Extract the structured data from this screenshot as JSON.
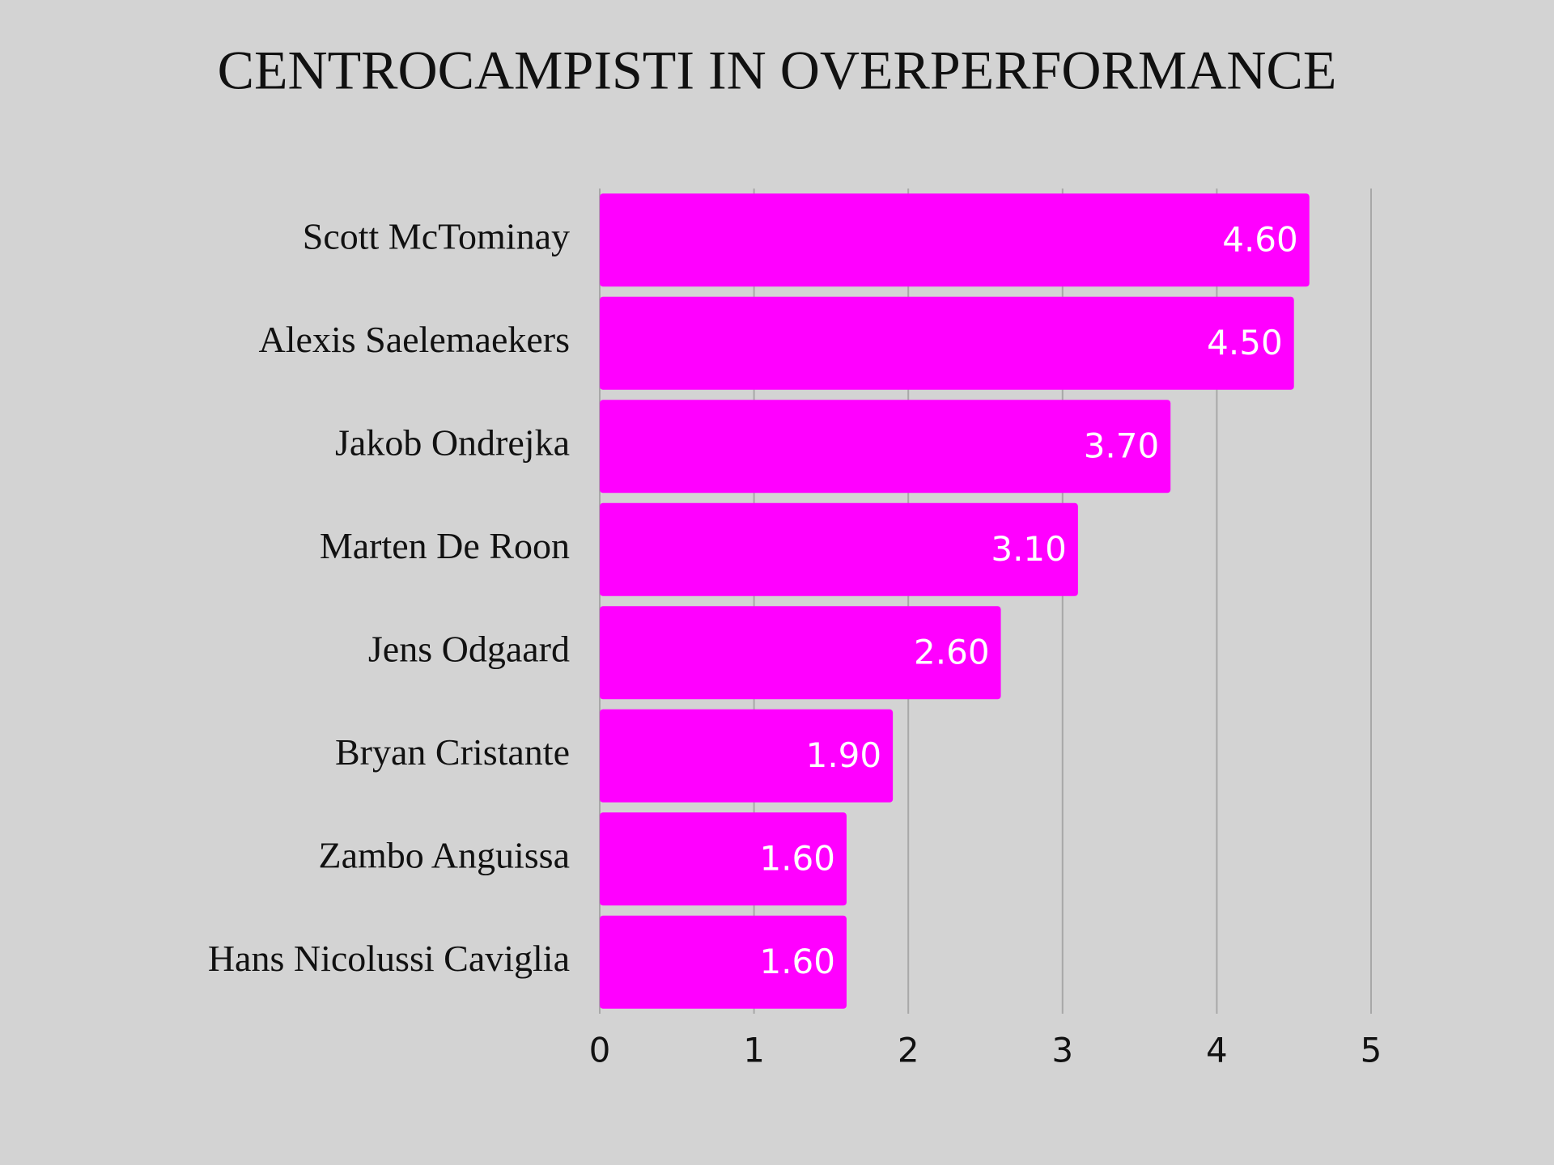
{
  "chart_data": {
    "type": "bar",
    "orientation": "horizontal",
    "title": "CENTROCAMPISTI IN OVERPERFORMANCE",
    "categories": [
      "Scott McTominay",
      "Alexis Saelemaekers",
      "Jakob Ondrejka",
      "Marten De Roon",
      "Jens Odgaard",
      "Bryan Cristante",
      "Zambo Anguissa",
      "Hans Nicolussi Caviglia"
    ],
    "values": [
      4.6,
      4.5,
      3.7,
      3.1,
      2.6,
      1.9,
      1.6,
      1.6
    ],
    "value_labels": [
      "4.60",
      "4.50",
      "3.70",
      "3.10",
      "2.60",
      "1.90",
      "1.60",
      "1.60"
    ],
    "color": "#ff00ff",
    "xlim": [
      0,
      5
    ],
    "xticks": [
      0,
      1,
      2,
      3,
      4,
      5
    ],
    "grid": true
  }
}
